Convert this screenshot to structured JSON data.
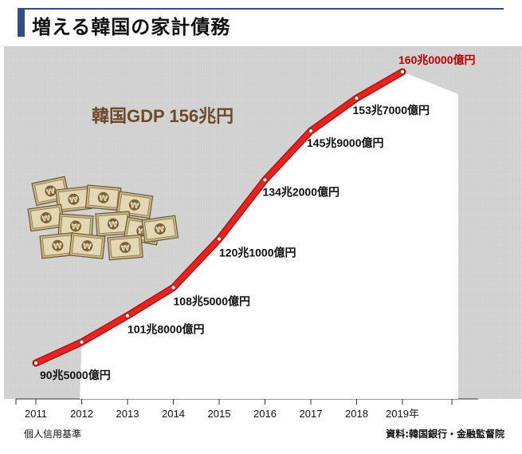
{
  "title": "増える韓国の家計債務",
  "gdp_note": "韓国GDP 156兆円",
  "basis_note": "個人信用基準",
  "source": "資料:韓国銀行・金融監督院",
  "colors": {
    "line": "#e8231e",
    "background_gray": "#d9d9d9",
    "title_accent": "#2f4f86",
    "highlight_label": "#c00000"
  },
  "icons": {
    "illustration": "money-bundles-icon"
  },
  "chart_data": {
    "type": "line",
    "categories": [
      "2011",
      "2012",
      "2013",
      "2014",
      "2015",
      "2016",
      "2017",
      "2018",
      "2019年"
    ],
    "values": [
      90.5,
      95.5,
      101.8,
      108.5,
      120.1,
      134.2,
      145.9,
      153.7,
      160.0
    ],
    "data_labels": [
      "90兆5000億円",
      "",
      "101兆8000億円",
      "108兆5000億円",
      "120兆1000億円",
      "134兆2000億円",
      "145兆9000億円",
      "153兆7000億円",
      "160兆0000億円"
    ],
    "ylim": [
      85,
      165
    ],
    "grid": false,
    "title": "",
    "xlabel": "",
    "ylabel": ""
  }
}
